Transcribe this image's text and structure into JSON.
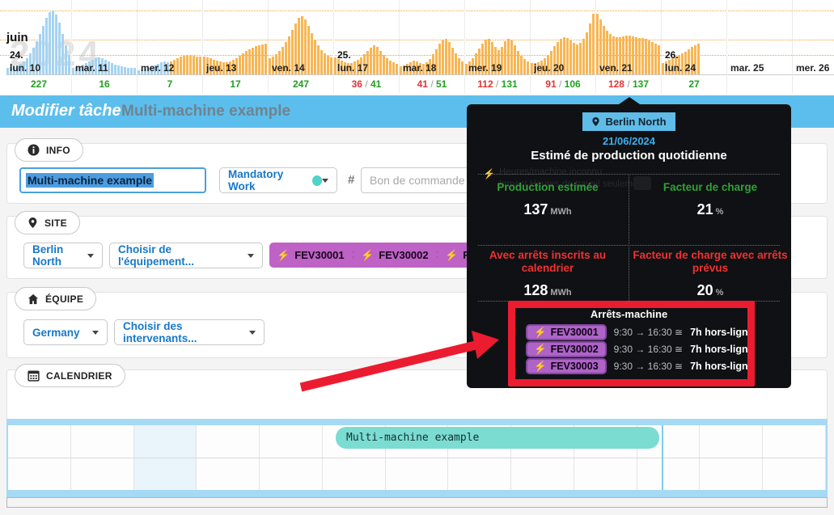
{
  "header": {
    "title": "Modifier tâche",
    "subtitle": "Multi-machine example"
  },
  "timeline": {
    "month_label": "juin",
    "year_watermark": "2024",
    "days": [
      {
        "label": "lun. 10",
        "week": "24.",
        "color": "blue",
        "bars": [
          8,
          9,
          10,
          11,
          13,
          16,
          20,
          26,
          33,
          41,
          50,
          60,
          70,
          77,
          79,
          74,
          64,
          50,
          36,
          24
        ],
        "green": "227"
      },
      {
        "label": "mar. 11",
        "color": "blue",
        "bars": [
          8,
          9,
          10,
          12,
          14,
          16,
          18,
          20,
          21,
          20,
          18,
          16,
          14,
          12,
          11,
          10,
          9,
          8,
          8,
          8
        ],
        "green": "16"
      },
      {
        "label": "mer. 12",
        "color": "blue",
        "split": 10,
        "bars": [
          5,
          6,
          7,
          8,
          9,
          11,
          13,
          15,
          16,
          15,
          16,
          18,
          20,
          22,
          23,
          24,
          24,
          23,
          22,
          22
        ],
        "green": "7"
      },
      {
        "label": "jeu. 13",
        "color": "orange",
        "bars": [
          22,
          21,
          20,
          18,
          17,
          16,
          15,
          15,
          16,
          18,
          20,
          23,
          26,
          29,
          31,
          33,
          35,
          36,
          37,
          38
        ],
        "green": "17"
      },
      {
        "label": "ven. 14",
        "color": "orange",
        "bars": [
          20,
          22,
          25,
          29,
          34,
          40,
          47,
          55,
          63,
          70,
          72,
          68,
          60,
          51,
          43,
          36,
          30,
          26,
          23,
          21
        ],
        "green": "247"
      },
      {
        "label": "lun. 17",
        "week": "25.",
        "color": "orange",
        "bars": [
          21,
          19,
          17,
          15,
          14,
          14,
          16,
          18,
          21,
          25,
          29,
          33,
          36,
          34,
          29,
          24,
          20,
          17,
          15,
          13
        ],
        "red": "36",
        "green": "41"
      },
      {
        "label": "mar. 18",
        "color": "orange",
        "bars": [
          10,
          11,
          13,
          15,
          17,
          16,
          14,
          13,
          15,
          19,
          25,
          31,
          38,
          43,
          44,
          40,
          33,
          26,
          20,
          16
        ],
        "red": "41",
        "green": "51"
      },
      {
        "label": "mer. 19",
        "color": "orange",
        "bars": [
          13,
          16,
          20,
          26,
          32,
          38,
          43,
          44,
          40,
          34,
          30,
          34,
          41,
          44,
          42,
          36,
          29,
          23,
          19,
          16
        ],
        "red": "112",
        "green": "131"
      },
      {
        "label": "jeu. 20",
        "color": "orange",
        "bars": [
          14,
          14,
          15,
          17,
          20,
          24,
          29,
          35,
          40,
          44,
          46,
          45,
          42,
          39,
          37,
          39,
          44,
          52,
          63,
          75
        ],
        "red": "91",
        "green": "106"
      },
      {
        "label": "ven. 21",
        "color": "orange",
        "bars": [
          75,
          68,
          60,
          54,
          50,
          47,
          46,
          46,
          47,
          48,
          48,
          47,
          46,
          45,
          45,
          44,
          42,
          40,
          38,
          36
        ],
        "red": "128",
        "green": "137"
      },
      {
        "label": "lun. 24",
        "week": "26.",
        "color": "orange",
        "bars": [
          14,
          16,
          18,
          20,
          22,
          24,
          26,
          28,
          31,
          34,
          36,
          38,
          0,
          0,
          0,
          0,
          0,
          0,
          0,
          0
        ],
        "green": "27"
      },
      {
        "label": "mar. 25",
        "color": "orange",
        "bars": []
      },
      {
        "label": "mer. 26",
        "color": "orange",
        "bars": []
      }
    ]
  },
  "sections": {
    "info": {
      "tab_label": "INFO",
      "task_name": "Multi-machine example",
      "work_type": "Mandatory Work",
      "hash": "#",
      "po_placeholder": "Bon de commande"
    },
    "site": {
      "tab_label": "SITE",
      "site_value": "Berlin North",
      "equipment_placeholder": "Choisir de l'équipement...",
      "machines": [
        "FEV30001",
        "FEV30002",
        "FEV30003"
      ]
    },
    "team": {
      "tab_label": "ÉQUIPE",
      "team_value": "Germany",
      "members_placeholder": "Choisir des intervenants..."
    },
    "calendar": {
      "tab_label": "CALENDRIER",
      "event_label": "Multi-machine example",
      "highlight_column": 2
    }
  },
  "tooltip": {
    "site_badge": "Berlin North",
    "date": "21/06/2024",
    "title": "Estimé de production quotidienne",
    "faint_legend_1": "Heures/machine inconnu",
    "faint_legend_2": "Impact Heures de travail seulement",
    "metrics": [
      {
        "label": "Production estimée",
        "value": "137",
        "unit": "MWh",
        "tone": "green"
      },
      {
        "label": "Facteur de charge",
        "value": "21",
        "unit": "%",
        "tone": "green"
      },
      {
        "label": "Avec arrêts inscrits au calendrier",
        "value": "128",
        "unit": "MWh",
        "tone": "red"
      },
      {
        "label": "Facteur de charge avec arrêts prévus",
        "value": "20",
        "unit": "%",
        "tone": "red"
      }
    ],
    "stops": {
      "title": "Arrêts-machine",
      "rows": [
        {
          "machine": "FEV30001",
          "time": "9:30 → 16:30 ≅",
          "duration": "7h hors-ligne"
        },
        {
          "machine": "FEV30002",
          "time": "9:30 → 16:30 ≅",
          "duration": "7h hors-ligne"
        },
        {
          "machine": "FEV30003",
          "time": "9:30 → 16:30 ≅",
          "duration": "7h hors-ligne"
        }
      ]
    }
  },
  "colors": {
    "bar_blue": "#a5d3f2",
    "bar_orange": "#f8b654",
    "header_blue": "#5cbeec",
    "tag_purple": "#be62c6",
    "event_teal": "#7bdcd2",
    "annotation_red": "#ec1c30",
    "count_green": "#1fa01f",
    "count_red": "#e53333"
  }
}
